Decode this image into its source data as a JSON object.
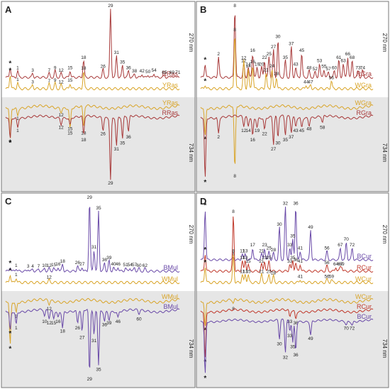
{
  "colors": {
    "RRas": "#a83a3a",
    "YRas": "#d9a52a",
    "RGra": "#a83a3a",
    "WGra": "#d9a52a",
    "BMul": "#6a4aa8",
    "WMul": "#d9a52a",
    "BCur": "#6a4aa8",
    "RCur": "#c0392b",
    "WCur": "#d9a52a",
    "text": "#222222",
    "gray_band": "#e6e6e6",
    "panel_border": "#777777"
  },
  "chart_data": [
    {
      "type": "line",
      "panel": "A",
      "top_label": "270 nm",
      "bottom_label": "734 nm",
      "peaks": [
        {
          "id": "*",
          "t": 0.03
        },
        {
          "id": "1",
          "t": 0.08
        },
        {
          "id": "3",
          "t": 0.18
        },
        {
          "id": "7",
          "t": 0.29
        },
        {
          "id": "9",
          "t": 0.33
        },
        {
          "id": "12",
          "t": 0.37
        },
        {
          "id": "15",
          "t": 0.43
        },
        {
          "id": "18",
          "t": 0.52
        },
        {
          "id": "26",
          "t": 0.65
        },
        {
          "id": "29",
          "t": 0.7
        },
        {
          "id": "31",
          "t": 0.74
        },
        {
          "id": "35",
          "t": 0.78
        },
        {
          "id": "36",
          "t": 0.82
        },
        {
          "id": "38",
          "t": 0.86
        },
        {
          "id": "42",
          "t": 0.91
        },
        {
          "id": "50",
          "t": 0.95
        },
        {
          "id": "54",
          "t": 0.99
        },
        {
          "id": "65",
          "t": 1.06
        },
        {
          "id": "69",
          "t": 1.11
        },
        {
          "id": "71",
          "t": 1.15
        }
      ],
      "series": [
        {
          "name": "RRas",
          "section": "top",
          "peaks": {
            "*": 0.15,
            "1": 0.1,
            "3": 0.06,
            "7": 0.06,
            "9": 0.1,
            "12": 0.06,
            "15": 0.1,
            "18": 0.25,
            "26": 0.12,
            "29": 1.0,
            "31": 0.32,
            "35": 0.18,
            "36": 0.1,
            "38": 0.05,
            "42": 0.05,
            "50": 0.04,
            "54": 0.06,
            "65": 0.03,
            "69": 0.03,
            "71": 0.03
          }
        },
        {
          "name": "YRas",
          "section": "top",
          "peaks": {
            "*": 0.18,
            "1": 0.08,
            "3": 0.05,
            "7": 0.06,
            "9": 0.07,
            "12": 0.05,
            "15": 0.07,
            "18": 0.22
          }
        },
        {
          "name": "YRas",
          "section": "bottom",
          "peaks": {
            "*": 0.45,
            "1": 0.1,
            "12": 0.05,
            "15": 0.3,
            "18": 0.3
          }
        },
        {
          "name": "RRas",
          "section": "bottom",
          "peaks": {
            "*": 0.35,
            "1": 0.15,
            "12": 0.1,
            "15": 0.12,
            "18": 0.3,
            "26": 0.2,
            "29": 1.0,
            "31": 0.45,
            "35": 0.35,
            "36": 0.25
          }
        }
      ]
    },
    {
      "type": "line",
      "panel": "B",
      "top_label": "270 nm",
      "bottom_label": "734 nm",
      "peaks": [
        {
          "id": "*",
          "t": 0.03
        },
        {
          "id": "2",
          "t": 0.12
        },
        {
          "id": "8",
          "t": 0.23
        },
        {
          "id": "12",
          "t": 0.29
        },
        {
          "id": "14",
          "t": 0.32
        },
        {
          "id": "16",
          "t": 0.35
        },
        {
          "id": "19",
          "t": 0.38
        },
        {
          "id": "20",
          "t": 0.41
        },
        {
          "id": "22",
          "t": 0.43
        },
        {
          "id": "21",
          "t": 0.44
        },
        {
          "id": "25",
          "t": 0.46
        },
        {
          "id": "24",
          "t": 0.48
        },
        {
          "id": "27",
          "t": 0.49
        },
        {
          "id": "28",
          "t": 0.51
        },
        {
          "id": "30",
          "t": 0.52
        },
        {
          "id": "35",
          "t": 0.57
        },
        {
          "id": "37",
          "t": 0.61
        },
        {
          "id": "43",
          "t": 0.64
        },
        {
          "id": "45",
          "t": 0.68
        },
        {
          "id": "44",
          "t": 0.71
        },
        {
          "id": "48",
          "t": 0.73
        },
        {
          "id": "52",
          "t": 0.77
        },
        {
          "id": "53",
          "t": 0.8
        },
        {
          "id": "55",
          "t": 0.83
        },
        {
          "id": "57",
          "t": 0.86
        },
        {
          "id": "60",
          "t": 0.9
        },
        {
          "id": "61",
          "t": 0.93
        },
        {
          "id": "63",
          "t": 0.96
        },
        {
          "id": "66",
          "t": 0.99
        },
        {
          "id": "68",
          "t": 1.02
        },
        {
          "id": "73",
          "t": 1.06
        },
        {
          "id": "74",
          "t": 1.09
        },
        {
          "id": "47",
          "t": 0.74
        },
        {
          "id": "56",
          "t": 0.88
        },
        {
          "id": "58",
          "t": 0.82
        }
      ],
      "series": [
        {
          "name": "RGra",
          "section": "top",
          "peaks": {
            "*": 0.2,
            "2": 0.3,
            "8": 1.0,
            "12": 0.2,
            "14": 0.15,
            "16": 0.35,
            "19": 0.15,
            "20": 0.15,
            "22": 0.25,
            "25": 0.3,
            "27": 0.4,
            "30": 0.55,
            "35": 0.25,
            "37": 0.45,
            "43": 0.15,
            "45": 0.35,
            "48": 0.1,
            "52": 0.08,
            "53": 0.2,
            "55": 0.12,
            "57": 0.08,
            "60": 0.1,
            "61": 0.25,
            "63": 0.2,
            "66": 0.3,
            "68": 0.25,
            "73": 0.1,
            "74": 0.1
          }
        },
        {
          "name": "WGra",
          "section": "top",
          "peaks": {
            "*": 0.05,
            "8": 0.7,
            "12": 0.35,
            "14": 0.25,
            "16": 0.3,
            "21": 0.2,
            "24": 0.25,
            "28": 0.15,
            "44": 0.05,
            "47": 0.05,
            "56": 0.1
          }
        },
        {
          "name": "WGra",
          "section": "bottom",
          "peaks": {
            "*": 0.4,
            "8": 0.9
          }
        },
        {
          "name": "RGra",
          "section": "bottom",
          "peaks": {
            "*": 1.0,
            "2": 0.25,
            "12": 0.15,
            "14": 0.15,
            "16": 0.3,
            "19": 0.15,
            "22": 0.2,
            "27": 0.45,
            "30": 0.35,
            "35": 0.3,
            "37": 0.25,
            "43": 0.15,
            "45": 0.15,
            "48": 0.12,
            "58": 0.1
          }
        }
      ]
    },
    {
      "type": "line",
      "panel": "C",
      "top_label": "270 nm",
      "bottom_label": "734 nm",
      "peaks": [
        {
          "id": "*",
          "t": 0.03
        },
        {
          "id": "1",
          "t": 0.07
        },
        {
          "id": "3",
          "t": 0.15
        },
        {
          "id": "4",
          "t": 0.18
        },
        {
          "id": "7",
          "t": 0.22
        },
        {
          "id": "10",
          "t": 0.26
        },
        {
          "id": "12",
          "t": 0.29
        },
        {
          "id": "15",
          "t": 0.32
        },
        {
          "id": "16",
          "t": 0.35
        },
        {
          "id": "18",
          "t": 0.38
        },
        {
          "id": "26",
          "t": 0.48
        },
        {
          "id": "27",
          "t": 0.51
        },
        {
          "id": "29",
          "t": 0.56
        },
        {
          "id": "31",
          "t": 0.59
        },
        {
          "id": "35",
          "t": 0.62
        },
        {
          "id": "36",
          "t": 0.66
        },
        {
          "id": "39",
          "t": 0.69
        },
        {
          "id": "40",
          "t": 0.72
        },
        {
          "id": "46",
          "t": 0.75
        },
        {
          "id": "51",
          "t": 0.8
        },
        {
          "id": "54",
          "t": 0.83
        },
        {
          "id": "57",
          "t": 0.86
        },
        {
          "id": "60",
          "t": 0.89
        },
        {
          "id": "62",
          "t": 0.93
        }
      ],
      "series": [
        {
          "name": "BMul",
          "section": "top",
          "peaks": {
            "*": 0.06,
            "1": 0.04,
            "3": 0.03,
            "4": 0.03,
            "7": 0.03,
            "10": 0.04,
            "12": 0.04,
            "15": 0.05,
            "16": 0.06,
            "18": 0.1,
            "26": 0.08,
            "27": 0.06,
            "29": 1.0,
            "31": 0.3,
            "35": 0.85,
            "36": 0.12,
            "39": 0.15,
            "40": 0.06,
            "46": 0.06,
            "51": 0.05,
            "54": 0.05,
            "57": 0.05,
            "60": 0.04,
            "62": 0.04
          }
        },
        {
          "name": "WMul",
          "section": "top",
          "peaks": {
            "*": 0.1,
            "1": 0.06,
            "12": 0.03
          }
        },
        {
          "name": "WMul",
          "section": "bottom",
          "peaks": {
            "*": 0.6,
            "1": 0.15,
            "12": 0.05
          }
        },
        {
          "name": "BMul",
          "section": "bottom",
          "peaks": {
            "*": 0.3,
            "1": 0.2,
            "10": 0.1,
            "12": 0.12,
            "15": 0.12,
            "16": 0.1,
            "18": 0.25,
            "26": 0.2,
            "27": 0.35,
            "29": 1.0,
            "31": 0.4,
            "35": 0.85,
            "36": 0.15,
            "39": 0.12,
            "46": 0.1,
            "60": 0.06
          }
        }
      ]
    },
    {
      "type": "line",
      "panel": "D",
      "top_label": "270 nm",
      "bottom_label": "734 nm",
      "peaks": [
        {
          "id": "*",
          "t": 0.03
        },
        {
          "id": "8",
          "t": 0.22
        },
        {
          "id": "11",
          "t": 0.28
        },
        {
          "id": "13",
          "t": 0.3
        },
        {
          "id": "15",
          "t": 0.32
        },
        {
          "id": "17",
          "t": 0.35
        },
        {
          "id": "21",
          "t": 0.41
        },
        {
          "id": "23",
          "t": 0.43
        },
        {
          "id": "25",
          "t": 0.46
        },
        {
          "id": "28",
          "t": 0.49
        },
        {
          "id": "30",
          "t": 0.53
        },
        {
          "id": "32",
          "t": 0.57
        },
        {
          "id": "33",
          "t": 0.6
        },
        {
          "id": "35",
          "t": 0.62
        },
        {
          "id": "36",
          "t": 0.64
        },
        {
          "id": "41",
          "t": 0.67
        },
        {
          "id": "49",
          "t": 0.74
        },
        {
          "id": "56",
          "t": 0.85
        },
        {
          "id": "59",
          "t": 0.88
        },
        {
          "id": "64",
          "t": 0.91
        },
        {
          "id": "67",
          "t": 0.94
        },
        {
          "id": "69",
          "t": 0.95
        },
        {
          "id": "70",
          "t": 0.98
        },
        {
          "id": "72",
          "t": 1.02
        }
      ],
      "series": [
        {
          "name": "BCur",
          "section": "top",
          "peaks": {
            "*": 0.85,
            "8": 0.05,
            "11": 0.1,
            "13": 0.1,
            "17": 0.2,
            "21": 0.1,
            "23": 0.2,
            "25": 0.15,
            "28": 0.12,
            "30": 0.55,
            "32": 0.9,
            "33": 0.2,
            "35": 0.35,
            "36": 0.9,
            "41": 0.15,
            "49": 0.5,
            "56": 0.15,
            "67": 0.2,
            "70": 0.3,
            "72": 0.2
          }
        },
        {
          "name": "RCur",
          "section": "top",
          "peaks": {
            "*": 0.25,
            "8": 0.8,
            "11": 0.15,
            "13": 0.15,
            "15": 0.1,
            "21": 0.1,
            "23": 0.15,
            "25": 0.15,
            "33": 0.1,
            "35": 0.15,
            "36": 0.12,
            "41": 0.1,
            "56": 0.08,
            "64": 0.06,
            "67": 0.06,
            "69": 0.06
          }
        },
        {
          "name": "WCur",
          "section": "top",
          "peaks": {
            "*": 0.2,
            "8": 0.35,
            "11": 0.1,
            "13": 0.1,
            "15": 0.1,
            "21": 0.1,
            "25": 0.1,
            "28": 0.08,
            "41": 0.04,
            "56": 0.04,
            "59": 0.04
          }
        },
        {
          "name": "WCur",
          "section": "bottom",
          "peaks": {
            "*": 0.35,
            "8": 0.05
          }
        },
        {
          "name": "RCur",
          "section": "bottom",
          "peaks": {
            "*": 0.75,
            "33": 0.1,
            "36": 0.12
          }
        },
        {
          "name": "BCur",
          "section": "bottom",
          "peaks": {
            "*": 1.0,
            "30": 0.35,
            "32": 0.6,
            "33": 0.2,
            "35": 0.4,
            "36": 0.55,
            "49": 0.25,
            "70": 0.06,
            "72": 0.06
          }
        }
      ]
    }
  ]
}
